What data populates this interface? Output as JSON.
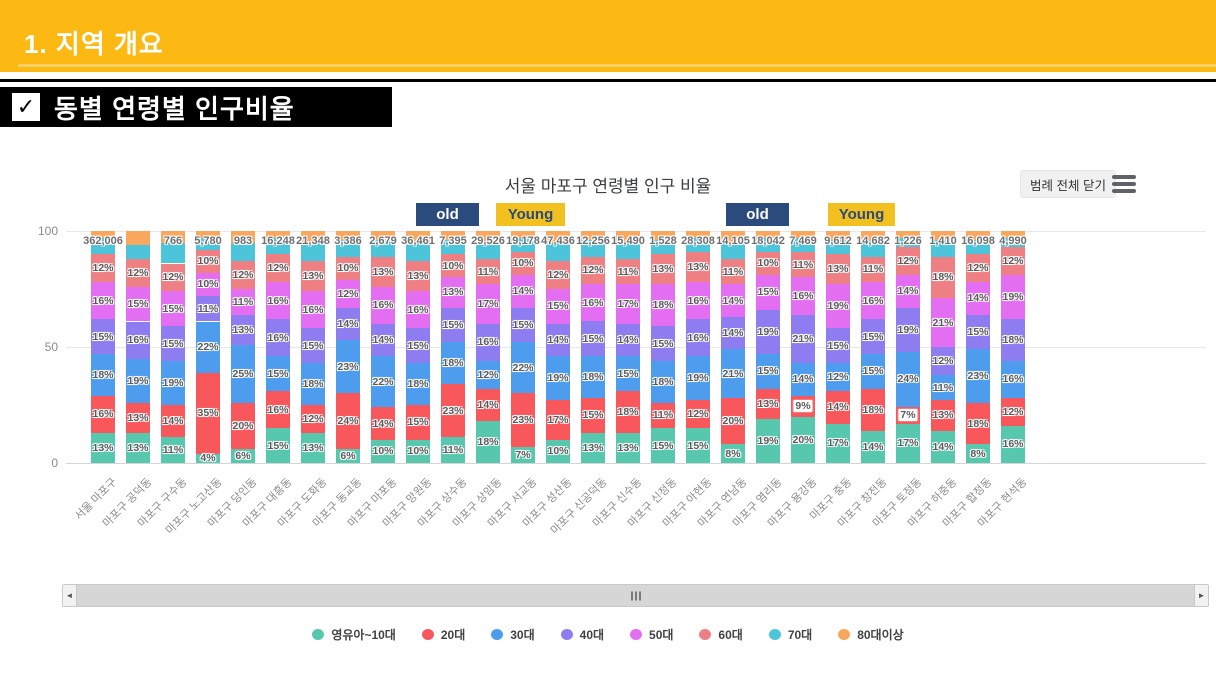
{
  "page": {
    "section_title": "1. 지역 개요",
    "subsection_label": "동별 연령별 인구비율",
    "check_glyph": "✓"
  },
  "toolbar": {
    "legend_close_label": "범례 전체 닫기"
  },
  "annotations": [
    {
      "text": "old",
      "type": "old"
    },
    {
      "text": "Young",
      "type": "young"
    },
    {
      "text": "old",
      "type": "old"
    },
    {
      "text": "Young",
      "type": "young"
    }
  ],
  "colors": {
    "header_yellow": "#FCB813",
    "badge_black": "#000000",
    "old_navy": "#2B4B7C",
    "young_gold": "#F2C120"
  },
  "chart_data": {
    "type": "bar",
    "stacked": true,
    "title": "서울 마포구 연령별 인구 비율",
    "xlabel": "",
    "ylabel": "",
    "ylim": [
      0,
      100
    ],
    "yticks": [
      0,
      50,
      100
    ],
    "grid": true,
    "legend_position": "bottom",
    "age_groups": [
      "영유아~10대",
      "20대",
      "30대",
      "40대",
      "50대",
      "60대",
      "70대",
      "80대이상"
    ],
    "age_colors": [
      "#57C7AD",
      "#F8575C",
      "#4E9CEE",
      "#8E7DF0",
      "#E36EF2",
      "#EE8084",
      "#4CC5DA",
      "#F9A75F"
    ],
    "labeled_groups": [
      "영유아~10대",
      "20대",
      "30대",
      "40대",
      "50대",
      "60대"
    ],
    "bars": [
      {
        "category": "서울 마포구",
        "total": "362,006",
        "pct": [
          13,
          16,
          18,
          15,
          16,
          12,
          7,
          3
        ]
      },
      {
        "category": "마포구 공덕동",
        "total": "",
        "pct": [
          13,
          13,
          19,
          16,
          15,
          12,
          6,
          6
        ]
      },
      {
        "category": "마포구 구수동",
        "total": "766",
        "pct": [
          11,
          14,
          19,
          15,
          15,
          12,
          9,
          5
        ]
      },
      {
        "category": "마포구 노고산동",
        "total": "5,780",
        "pct": [
          4,
          35,
          22,
          11,
          10,
          10,
          5,
          3
        ]
      },
      {
        "category": "마포구 당인동",
        "total": "983",
        "pct": [
          6,
          20,
          25,
          13,
          11,
          12,
          8,
          5
        ]
      },
      {
        "category": "마포구 대흥동",
        "total": "16,248",
        "pct": [
          15,
          16,
          15,
          16,
          16,
          12,
          7,
          3
        ]
      },
      {
        "category": "마포구 도화동",
        "total": "21,348",
        "pct": [
          13,
          12,
          18,
          15,
          16,
          13,
          8,
          5
        ]
      },
      {
        "category": "마포구 동교동",
        "total": "3,386",
        "pct": [
          6,
          24,
          23,
          14,
          12,
          10,
          7,
          4
        ]
      },
      {
        "category": "마포구 마포동",
        "total": "2,679",
        "pct": [
          10,
          14,
          22,
          14,
          16,
          13,
          7,
          4
        ]
      },
      {
        "category": "마포구 망원동",
        "total": "36,461",
        "pct": [
          10,
          15,
          18,
          15,
          16,
          13,
          8,
          5
        ]
      },
      {
        "category": "마포구 상수동",
        "total": "7,395",
        "pct": [
          11,
          23,
          18,
          15,
          13,
          10,
          6,
          4
        ]
      },
      {
        "category": "마포구 상암동",
        "total": "29,526",
        "pct": [
          18,
          14,
          12,
          16,
          17,
          11,
          7,
          5
        ]
      },
      {
        "category": "마포구 서교동",
        "total": "19,178",
        "pct": [
          7,
          23,
          22,
          15,
          14,
          10,
          6,
          3
        ]
      },
      {
        "category": "마포구 성산동",
        "total": "47,436",
        "pct": [
          10,
          17,
          19,
          14,
          15,
          12,
          8,
          5
        ]
      },
      {
        "category": "마포구 신공덕동",
        "total": "12,256",
        "pct": [
          13,
          15,
          18,
          15,
          16,
          12,
          7,
          4
        ]
      },
      {
        "category": "마포구 신수동",
        "total": "15,490",
        "pct": [
          13,
          18,
          15,
          14,
          17,
          11,
          7,
          5
        ]
      },
      {
        "category": "마포구 신정동",
        "total": "1,528",
        "pct": [
          15,
          11,
          18,
          15,
          18,
          13,
          6,
          4
        ]
      },
      {
        "category": "마포구 아현동",
        "total": "28,308",
        "pct": [
          15,
          12,
          19,
          16,
          16,
          13,
          6,
          3
        ]
      },
      {
        "category": "마포구 연남동",
        "total": "14,105",
        "pct": [
          8,
          20,
          21,
          14,
          14,
          11,
          7,
          5
        ]
      },
      {
        "category": "마포구 염리동",
        "total": "18,042",
        "pct": [
          19,
          13,
          15,
          19,
          15,
          10,
          6,
          3
        ]
      },
      {
        "category": "마포구 용강동",
        "total": "7,469",
        "pct": [
          20,
          9,
          14,
          21,
          16,
          11,
          6,
          3
        ],
        "highlight_index": 1
      },
      {
        "category": "마포구 중동",
        "total": "9,612",
        "pct": [
          17,
          14,
          12,
          15,
          19,
          13,
          6,
          4
        ]
      },
      {
        "category": "마포구 창전동",
        "total": "14,682",
        "pct": [
          14,
          18,
          15,
          15,
          16,
          11,
          7,
          4
        ]
      },
      {
        "category": "마포구 토정동",
        "total": "1,226",
        "pct": [
          17,
          7,
          24,
          19,
          14,
          12,
          4,
          3
        ],
        "highlight_index": 1
      },
      {
        "category": "마포구 하중동",
        "total": "1,410",
        "pct": [
          14,
          13,
          11,
          12,
          21,
          18,
          7,
          4
        ]
      },
      {
        "category": "마포구 합정동",
        "total": "16,098",
        "pct": [
          8,
          18,
          23,
          15,
          14,
          12,
          6,
          4
        ]
      },
      {
        "category": "마포구 현석동",
        "total": "4,990",
        "pct": [
          16,
          12,
          16,
          18,
          19,
          12,
          4,
          3
        ]
      }
    ]
  }
}
